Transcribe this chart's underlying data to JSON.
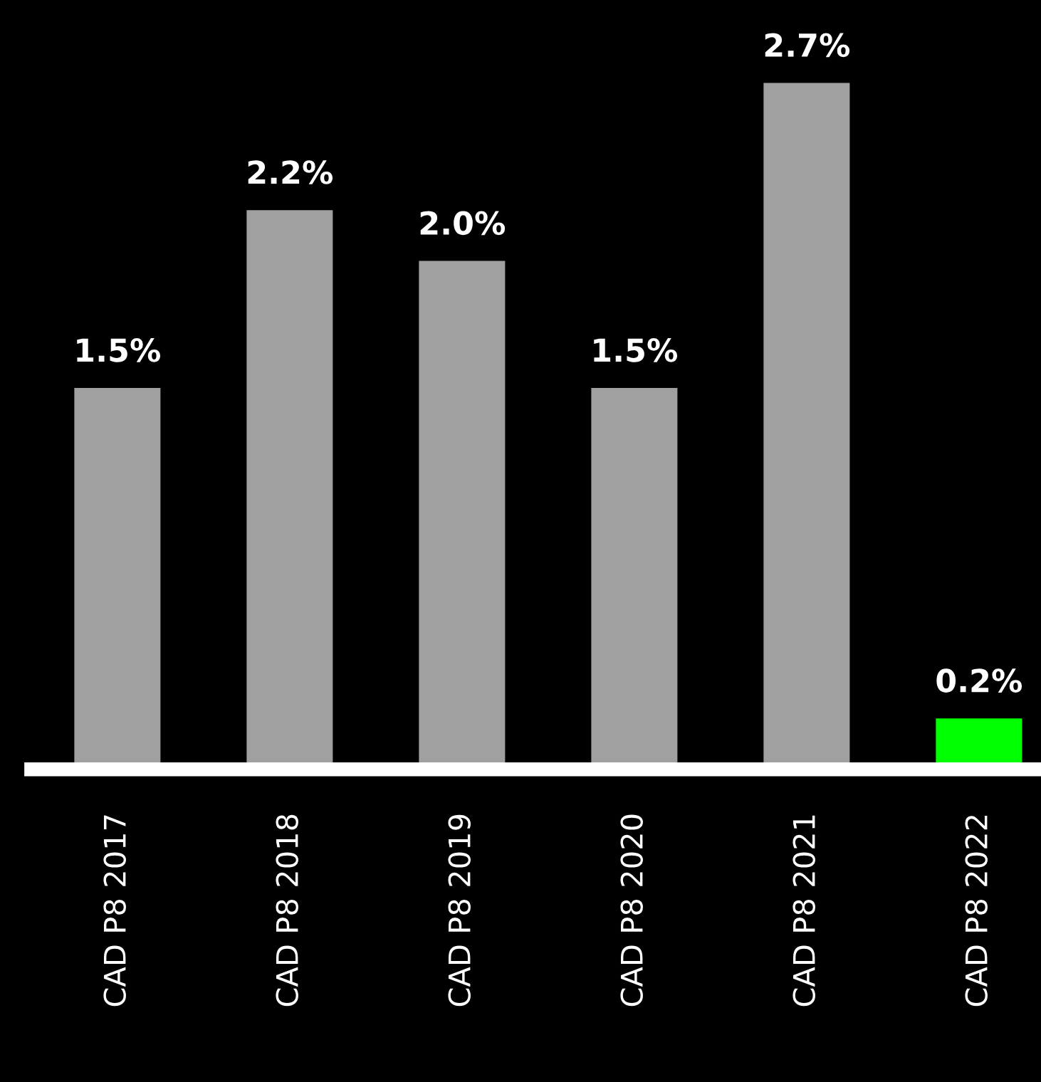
{
  "chart_data": {
    "type": "bar",
    "categories": [
      "CAD P8 2017",
      "CAD P8 2018",
      "CAD P8 2019",
      "CAD P8 2020",
      "CAD P8 2021",
      "CAD P8 2022"
    ],
    "values": [
      1.5,
      2.2,
      2.0,
      1.5,
      2.7,
      0.2
    ],
    "colors": [
      "#a0a0a0",
      "#a0a0a0",
      "#a0a0a0",
      "#a0a0a0",
      "#a0a0a0",
      "#00ff00"
    ],
    "value_labels": [
      "1.5%",
      "2.2%",
      "2.0%",
      "1.5%",
      "2.7%",
      "0.2%"
    ],
    "tick_labels": "x",
    "grid": false,
    "legend": false
  }
}
